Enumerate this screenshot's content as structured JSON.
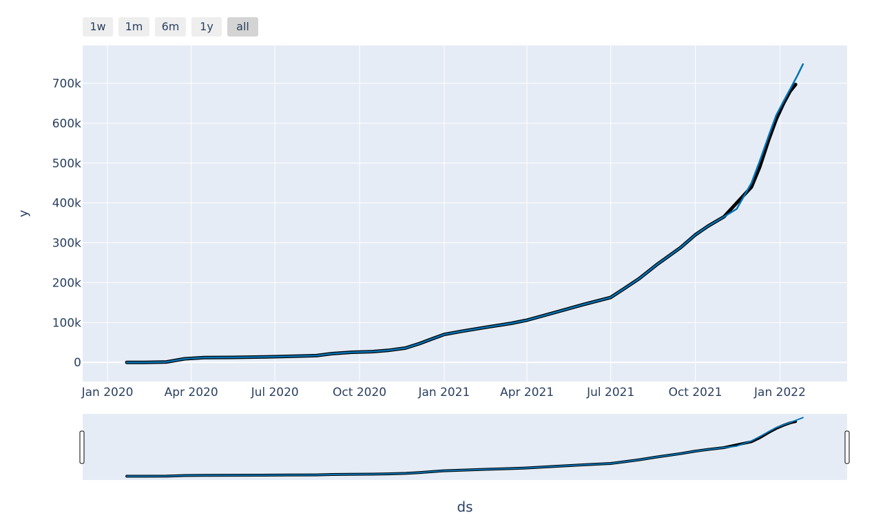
{
  "range_selector": {
    "buttons": [
      {
        "label": "1w",
        "active": false
      },
      {
        "label": "1m",
        "active": false
      },
      {
        "label": "6m",
        "active": false
      },
      {
        "label": "1y",
        "active": false
      },
      {
        "label": "all",
        "active": true
      }
    ]
  },
  "colors": {
    "plot_bg": "#e5ecf6",
    "grid": "#ffffff",
    "actual": "#000000",
    "forecast": "#0072b2",
    "text": "#2a3f5f"
  },
  "chart_data": {
    "type": "line",
    "title": "",
    "xlabel": "ds",
    "ylabel": "y",
    "x_range": [
      "2019-12-05",
      "2022-03-15"
    ],
    "y_range": [
      -48000,
      795000
    ],
    "grid": true,
    "x_ticks": [
      "2020-01-01",
      "2020-04-01",
      "2020-07-01",
      "2020-10-01",
      "2021-01-01",
      "2021-04-01",
      "2021-07-01",
      "2021-10-01",
      "2022-01-01"
    ],
    "x_tick_labels": [
      "Jan 2020",
      "Apr 2020",
      "Jul 2020",
      "Oct 2020",
      "Jan 2021",
      "Apr 2021",
      "Jul 2021",
      "Oct 2021",
      "Jan 2022"
    ],
    "y_ticks": [
      0,
      100000,
      200000,
      300000,
      400000,
      500000,
      600000,
      700000
    ],
    "y_tick_labels": [
      "0",
      "100k",
      "200k",
      "300k",
      "400k",
      "500k",
      "600k",
      "700k"
    ],
    "series": [
      {
        "color": "#000000",
        "x": [
          "2020-01-22",
          "2020-02-10",
          "2020-03-05",
          "2020-03-25",
          "2020-04-15",
          "2020-05-15",
          "2020-06-15",
          "2020-07-15",
          "2020-08-15",
          "2020-09-01",
          "2020-09-20",
          "2020-10-15",
          "2020-11-01",
          "2020-11-20",
          "2020-12-05",
          "2020-12-20",
          "2021-01-01",
          "2021-01-20",
          "2021-02-15",
          "2021-03-15",
          "2021-04-01",
          "2021-05-01",
          "2021-06-01",
          "2021-07-01",
          "2021-07-15",
          "2021-08-01",
          "2021-08-20",
          "2021-09-15",
          "2021-10-01",
          "2021-10-15",
          "2021-11-01",
          "2021-11-15",
          "2021-12-01",
          "2021-12-10",
          "2021-12-20",
          "2021-12-28",
          "2022-01-05",
          "2022-01-12",
          "2022-01-18"
        ],
        "y": [
          0,
          0,
          1000,
          9000,
          12000,
          12500,
          13500,
          15000,
          17000,
          22000,
          25000,
          27000,
          30000,
          36000,
          47000,
          60000,
          70000,
          78000,
          88000,
          98000,
          106000,
          125000,
          145000,
          163000,
          184000,
          210000,
          245000,
          288000,
          320000,
          342000,
          365000,
          400000,
          440000,
          490000,
          560000,
          610000,
          650000,
          680000,
          697000
        ]
      },
      {
        "color": "#0072b2",
        "x": [
          "2020-01-22",
          "2020-02-10",
          "2020-03-05",
          "2020-03-25",
          "2020-04-15",
          "2020-05-15",
          "2020-06-15",
          "2020-07-15",
          "2020-08-15",
          "2020-09-01",
          "2020-09-20",
          "2020-10-15",
          "2020-11-01",
          "2020-11-20",
          "2020-12-05",
          "2020-12-20",
          "2021-01-01",
          "2021-01-20",
          "2021-02-15",
          "2021-03-15",
          "2021-04-01",
          "2021-05-01",
          "2021-06-01",
          "2021-07-01",
          "2021-07-15",
          "2021-08-01",
          "2021-08-20",
          "2021-09-15",
          "2021-10-01",
          "2021-10-15",
          "2021-11-01",
          "2021-11-15",
          "2021-12-01",
          "2021-12-10",
          "2021-12-20",
          "2021-12-28",
          "2022-01-05",
          "2022-01-12",
          "2022-01-20",
          "2022-01-26"
        ],
        "y": [
          0,
          0,
          1000,
          9000,
          12000,
          12500,
          13500,
          15000,
          17000,
          22000,
          25000,
          27000,
          30000,
          36000,
          47000,
          60000,
          70000,
          78000,
          88000,
          98000,
          106000,
          125000,
          145000,
          163000,
          184000,
          210000,
          245000,
          288000,
          320000,
          342000,
          365000,
          385000,
          450000,
          505000,
          570000,
          620000,
          655000,
          685000,
          720000,
          748000
        ]
      }
    ]
  }
}
